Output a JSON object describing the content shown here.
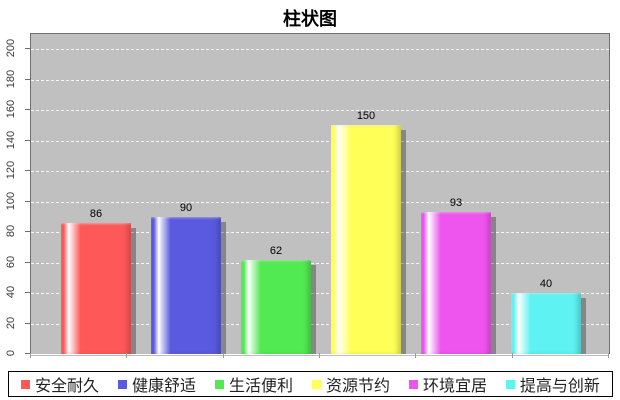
{
  "title": "柱状图",
  "chart_data": {
    "type": "bar",
    "title": "柱状图",
    "categories": [
      "安全耐久",
      "健康舒适",
      "生活便利",
      "资源节约",
      "环境宜居",
      "提高与创新"
    ],
    "values": [
      86,
      90,
      62,
      150,
      93,
      40
    ],
    "value_labels": [
      "86",
      "90",
      "62",
      "150",
      "93",
      "40"
    ],
    "colors": [
      "#ff5858",
      "#5a5ae0",
      "#52ea52",
      "#ffff58",
      "#ee55ee",
      "#5ff2f2"
    ],
    "xlabel": "",
    "ylabel": "",
    "ylim": [
      0,
      210
    ],
    "yticks": [
      0,
      20,
      40,
      60,
      80,
      100,
      120,
      140,
      160,
      180,
      200
    ],
    "grid": "horizontal white dashed",
    "plot_background": "#c0c0c0",
    "legend_position": "bottom"
  }
}
